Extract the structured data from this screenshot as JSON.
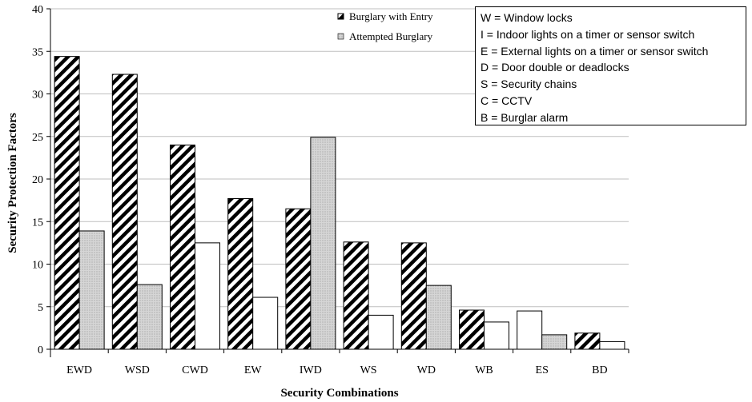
{
  "chart_data": {
    "type": "bar",
    "title": "",
    "xlabel": "Security Combinations",
    "ylabel": "Security Protection Factors",
    "ylim": [
      0,
      40
    ],
    "yticks": [
      0,
      5,
      10,
      15,
      20,
      25,
      30,
      35,
      40
    ],
    "grid": true,
    "legend_position": "top-right",
    "categories": [
      "EWD",
      "WSD",
      "CWD",
      "EW",
      "IWD",
      "WS",
      "WD",
      "WB",
      "ES",
      "BD"
    ],
    "series": [
      {
        "name": "Burglary with Entry",
        "pattern": [
          "hatch",
          "hatch",
          "hatch",
          "hatch",
          "hatch",
          "hatch",
          "hatch",
          "hatch",
          "white",
          "hatch"
        ],
        "values": [
          34.4,
          32.3,
          24.0,
          17.7,
          16.5,
          12.6,
          12.5,
          4.6,
          4.5,
          1.9
        ]
      },
      {
        "name": "Attempted Burglary",
        "pattern": [
          "dots",
          "dots",
          "white",
          "white",
          "dots",
          "white",
          "dots",
          "white",
          "dots",
          "white"
        ],
        "values": [
          13.9,
          7.6,
          12.5,
          6.1,
          24.9,
          4.0,
          7.5,
          3.2,
          1.7,
          0.9
        ]
      }
    ],
    "colors": {
      "dots_fill": "#d9d9d9",
      "hatch_stroke": "#000000",
      "grid": "#bfbfbf"
    }
  },
  "key": [
    "W = Window locks",
    "I = Indoor lights on a timer or sensor switch",
    "E = External lights on a timer or sensor switch",
    "D = Door double or deadlocks",
    "S = Security chains",
    "C = CCTV",
    "B = Burglar alarm"
  ]
}
